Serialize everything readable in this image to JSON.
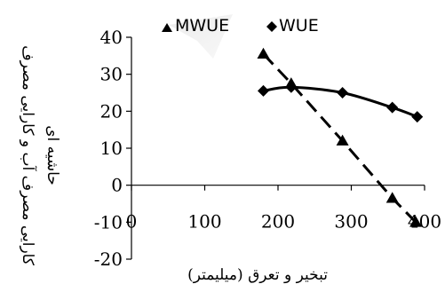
{
  "chart_data": {
    "type": "line",
    "xlabel": "تبخیر و تعرق (میلیمتر)",
    "ylabel_lines": [
      "کارایی مصرف آب و کارایی مصرف",
      "حاشیه ای"
    ],
    "xlim": [
      0,
      400
    ],
    "ylim": [
      -20,
      40
    ],
    "xticks": [
      0,
      100,
      200,
      300,
      400
    ],
    "yticks": [
      40,
      30,
      20,
      10,
      0,
      -10,
      -20
    ],
    "xtick_labels": [
      "0",
      "100",
      "200",
      "300",
      "400"
    ],
    "ytick_labels": [
      "40",
      "30",
      "20",
      "10",
      "0",
      "-10",
      "-20"
    ],
    "legend_position": "top",
    "series": [
      {
        "name": "MWUE",
        "marker": "triangle",
        "line_style": "dashed",
        "color": "#000000",
        "points": [
          [
            180,
            35.5
          ],
          [
            218,
            27.5
          ],
          [
            288,
            12
          ],
          [
            356,
            -3.5
          ],
          [
            388,
            -10
          ]
        ]
      },
      {
        "name": "WUE",
        "marker": "diamond",
        "line_style": "solid",
        "color": "#000000",
        "points": [
          [
            180,
            25.5
          ],
          [
            218,
            26.5
          ],
          [
            288,
            25
          ],
          [
            356,
            21
          ],
          [
            390,
            18.5
          ]
        ]
      }
    ]
  }
}
